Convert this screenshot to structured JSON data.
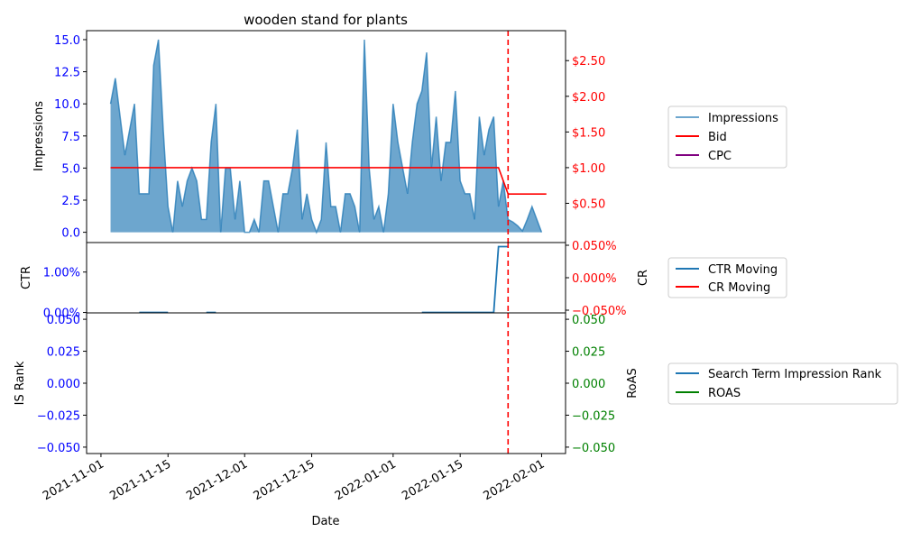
{
  "colors": {
    "impressions": "#1f77b4",
    "bid": "#ff0000",
    "cpc": "#800080",
    "ctr": "#1f77b4",
    "cr": "#ff0000",
    "is_rank": "#1f77b4",
    "roas": "#008000",
    "left_ticks": "#0000ff",
    "right_ticks_top": "#ff0000",
    "right_ticks_bottom": "#008000"
  },
  "chart_data": [
    {
      "panel": "top",
      "type": "area",
      "title": "wooden stand for plants",
      "ylabel": "Impressions",
      "ylim": [
        -0.8,
        15.7
      ],
      "yticks": [
        0.0,
        2.5,
        5.0,
        7.5,
        10.0,
        12.5,
        15.0
      ],
      "ytick_labels": [
        "0.0",
        "2.5",
        "5.0",
        "7.5",
        "10.0",
        "12.5",
        "15.0"
      ],
      "y2lim": [
        -0.05,
        2.92
      ],
      "y2ticks": [
        0.5,
        1.0,
        1.5,
        2.0,
        2.5
      ],
      "y2tick_labels": [
        "$0.50",
        "$1.00",
        "$1.50",
        "$2.00",
        "$2.50"
      ],
      "vline_date": "2022-01-25",
      "series": [
        {
          "name": "Impressions",
          "type": "area",
          "x": [
            "2021-11-03",
            "2021-11-04",
            "2021-11-05",
            "2021-11-06",
            "2021-11-07",
            "2021-11-08",
            "2021-11-09",
            "2021-11-10",
            "2021-11-11",
            "2021-11-12",
            "2021-11-13",
            "2021-11-14",
            "2021-11-15",
            "2021-11-16",
            "2021-11-17",
            "2021-11-18",
            "2021-11-19",
            "2021-11-20",
            "2021-11-21",
            "2021-11-22",
            "2021-11-23",
            "2021-11-24",
            "2021-11-25",
            "2021-11-26",
            "2021-11-27",
            "2021-11-28",
            "2021-11-29",
            "2021-11-30",
            "2021-12-01",
            "2021-12-02",
            "2021-12-03",
            "2021-12-04",
            "2021-12-05",
            "2021-12-06",
            "2021-12-07",
            "2021-12-08",
            "2021-12-09",
            "2021-12-10",
            "2021-12-11",
            "2021-12-12",
            "2021-12-13",
            "2021-12-14",
            "2021-12-15",
            "2021-12-16",
            "2021-12-17",
            "2021-12-18",
            "2021-12-19",
            "2021-12-20",
            "2021-12-21",
            "2021-12-22",
            "2021-12-23",
            "2021-12-24",
            "2021-12-25",
            "2021-12-26",
            "2021-12-27",
            "2021-12-28",
            "2021-12-29",
            "2021-12-30",
            "2021-12-31",
            "2022-01-01",
            "2022-01-02",
            "2022-01-03",
            "2022-01-04",
            "2022-01-05",
            "2022-01-06",
            "2022-01-07",
            "2022-01-08",
            "2022-01-09",
            "2022-01-10",
            "2022-01-11",
            "2022-01-12",
            "2022-01-13",
            "2022-01-14",
            "2022-01-15",
            "2022-01-16",
            "2022-01-17",
            "2022-01-18",
            "2022-01-19",
            "2022-01-20",
            "2022-01-21",
            "2022-01-22",
            "2022-01-23",
            "2022-01-24",
            "2022-01-25",
            "2022-01-26",
            "2022-01-27",
            "2022-01-28",
            "2022-01-29",
            "2022-01-30",
            "2022-01-31",
            "2022-02-01"
          ],
          "values": [
            10,
            12,
            9,
            6,
            8,
            10,
            3,
            3,
            3,
            13,
            15,
            8,
            2,
            0,
            4,
            2,
            4,
            5,
            4,
            1,
            1,
            7,
            10,
            0,
            5,
            5,
            1,
            4,
            0,
            0,
            1,
            0,
            4,
            4,
            2,
            0,
            3,
            3,
            5,
            8,
            1,
            3,
            1,
            0,
            1,
            7,
            2,
            2,
            0,
            3,
            3,
            2,
            0,
            15,
            5,
            1,
            2,
            0,
            3,
            10,
            7,
            5,
            3,
            7,
            10,
            11,
            14,
            5,
            9,
            4,
            7,
            7,
            11,
            4,
            3,
            3,
            1,
            9,
            6,
            8,
            9,
            2,
            4,
            1,
            0.8,
            0.5,
            0.1,
            1,
            2,
            1,
            0
          ]
        },
        {
          "name": "Bid",
          "type": "line",
          "axis": "right",
          "x": [
            "2021-11-03",
            "2022-01-23",
            "2022-01-25",
            "2022-02-02"
          ],
          "values": [
            1.0,
            1.0,
            0.63,
            0.63
          ]
        },
        {
          "name": "CPC",
          "type": "line",
          "axis": "right",
          "x": [],
          "values": []
        }
      ]
    },
    {
      "panel": "middle",
      "type": "line",
      "ylabel": "CTR",
      "y2label": "CR",
      "ylim": [
        -0.0001,
        0.0173
      ],
      "yticks": [
        0.0,
        0.01
      ],
      "ytick_labels": [
        "0.00%",
        "1.00%"
      ],
      "y2lim": [
        -0.05,
        0.05
      ],
      "y2ticks": [
        -0.05,
        0.0,
        0.05
      ],
      "y2tick_labels": [
        "−0.050%",
        "0.000%",
        "0.050%"
      ],
      "vline_date": "2022-01-25",
      "series": [
        {
          "name": "CTR Moving",
          "segments": [
            {
              "x": [
                "2021-11-09",
                "2021-11-15"
              ],
              "values": [
                0.0,
                0.0
              ]
            },
            {
              "x": [
                "2021-11-23",
                "2021-11-25"
              ],
              "values": [
                0.0,
                0.0
              ]
            },
            {
              "x": [
                "2022-01-07",
                "2022-01-22",
                "2022-01-23",
                "2022-01-25"
              ],
              "values": [
                0.0,
                0.0,
                0.0163,
                0.0163
              ]
            }
          ]
        },
        {
          "name": "CR Moving",
          "segments": []
        }
      ]
    },
    {
      "panel": "bottom",
      "type": "line",
      "ylabel": "IS Rank",
      "y2label": "RoAS",
      "xlabel": "Date",
      "ylim": [
        -0.055,
        0.055
      ],
      "yticks": [
        -0.05,
        -0.025,
        0.0,
        0.025,
        0.05
      ],
      "ytick_labels": [
        "−0.050",
        "−0.025",
        "0.000",
        "0.025",
        "0.050"
      ],
      "y2lim": [
        -0.055,
        0.055
      ],
      "y2ticks": [
        -0.05,
        -0.025,
        0.0,
        0.025,
        0.05
      ],
      "y2tick_labels": [
        "−0.050",
        "−0.025",
        "0.000",
        "0.025",
        "0.050"
      ],
      "vline_date": "2022-01-25",
      "xlim": [
        "2021-10-29",
        "2022-02-06"
      ],
      "xticks": [
        "2021-11-01",
        "2021-11-15",
        "2021-12-01",
        "2021-12-15",
        "2022-01-01",
        "2022-01-15",
        "2022-02-01"
      ],
      "series": [
        {
          "name": "Search Term Impression Rank",
          "values": []
        },
        {
          "name": "ROAS",
          "values": []
        }
      ]
    }
  ],
  "legends": [
    {
      "entries": [
        "Impressions",
        "Bid",
        "CPC"
      ]
    },
    {
      "entries": [
        "CTR Moving",
        "CR Moving"
      ]
    },
    {
      "entries": [
        "Search Term Impression Rank",
        "ROAS"
      ]
    }
  ]
}
